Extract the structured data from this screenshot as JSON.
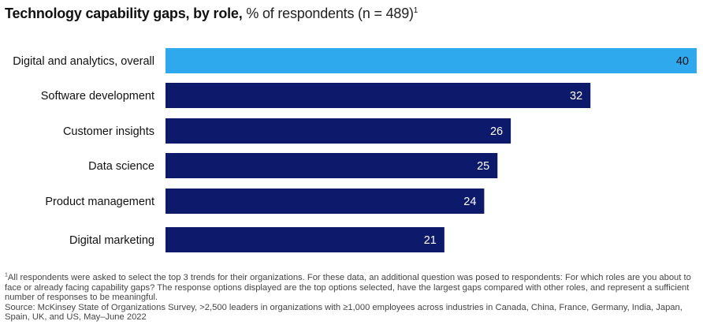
{
  "title": {
    "bold": "Technology capability gaps, by role,",
    "normal": "% of respondents (n = 489)",
    "sup": "1"
  },
  "colors": {
    "highlight": "#2FA9EE",
    "bar": "#0D1A6B",
    "value_text": "#ffffff",
    "highlight_value_text": "#111111"
  },
  "chart_data": {
    "type": "bar",
    "orientation": "horizontal",
    "categories": [
      "Digital and analytics, overall",
      "Software development",
      "Customer insights",
      "Data science",
      "Product management",
      "Digital marketing"
    ],
    "values": [
      40,
      32,
      26,
      25,
      24,
      21
    ],
    "highlighted_index": 0,
    "xlim": [
      0,
      40
    ],
    "grid": false,
    "data_labels": true
  },
  "footnotes": {
    "note_sup": "1",
    "note": "All respondents were asked to select the top 3 trends for their organizations. For these data, an additional question was posed to respondents: For which roles are you about to face or already facing capability gaps? The response options displayed are the top options selected, have the largest gaps compared with other roles, and represent a sufficient number of responses to be meaningful.",
    "source": "Source: McKinsey State of Organizations Survey, >2,500 leaders in organizations with ≥1,000 employees across industries in Canada, China, France, Germany, India, Japan, Spain, UK, and US, May–June 2022"
  }
}
